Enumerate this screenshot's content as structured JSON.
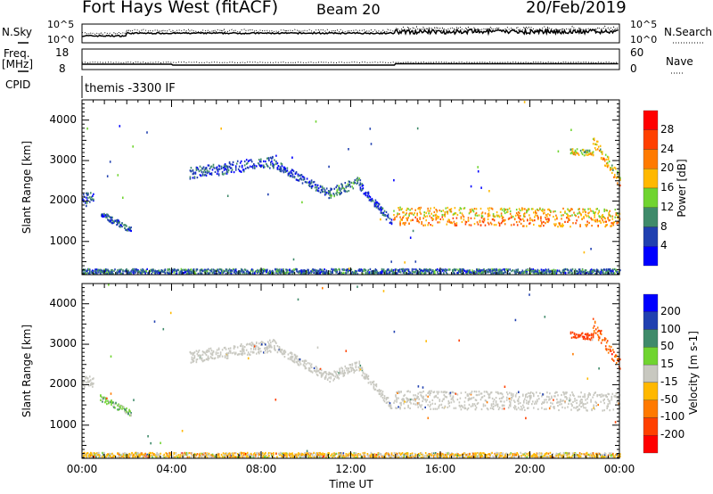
{
  "header": {
    "station": "Fort Hays West (fitACF)",
    "beam": "Beam 20",
    "date": "20/Feb/2019"
  },
  "noise_panel": {
    "left_label": "N.Sky",
    "right_label": "N.Search",
    "ticks_left": [
      "10^5",
      "10^0"
    ],
    "ticks_right": [
      "10^5",
      "10^0"
    ]
  },
  "freq_panel": {
    "left_label_1": "Freq.",
    "left_label_2": "[MHz]",
    "right_label": "Nave",
    "ticks_left": [
      "18",
      "8"
    ],
    "ticks_right": [
      "60",
      "0"
    ]
  },
  "cpid": {
    "label": "CPID",
    "value": "themis -3300 IF"
  },
  "chart_data": [
    {
      "type": "heatmap",
      "title": "Power",
      "ylabel": "Slant Range [km]",
      "xlabel": "Time UT",
      "xlim": [
        0,
        24
      ],
      "ylim": [
        180,
        4500
      ],
      "yticks": [
        1000,
        2000,
        3000,
        4000
      ],
      "xtick_labels": [
        "00:00",
        "04:00",
        "08:00",
        "12:00",
        "16:00",
        "20:00",
        "00:00"
      ],
      "colorbar": {
        "label": "Power [dB]",
        "ticks": [
          "28",
          "24",
          "20",
          "16",
          "12",
          "8",
          "4"
        ],
        "colors": [
          "#ff0000",
          "#ff4000",
          "#ff7a00",
          "#ffb800",
          "#70d430",
          "#3f8a6a",
          "#2040b0",
          "#0000ff"
        ]
      },
      "echo_bands": [
        {
          "t0": 0.0,
          "t1": 0.5,
          "r0": 2100,
          "r1": 2100,
          "width": 250,
          "power": 6,
          "velocity": 0
        },
        {
          "t0": 0.8,
          "t1": 2.2,
          "r0": 1700,
          "r1": 1300,
          "width": 150,
          "power": 6,
          "velocity": 30
        },
        {
          "t0": 4.8,
          "t1": 8.7,
          "r0": 2700,
          "r1": 3000,
          "width": 300,
          "power": 6,
          "velocity": 0
        },
        {
          "t0": 8.7,
          "t1": 11.0,
          "r0": 2900,
          "r1": 2200,
          "width": 200,
          "power": 6,
          "velocity": 0
        },
        {
          "t0": 11.0,
          "t1": 12.4,
          "r0": 2200,
          "r1": 2500,
          "width": 250,
          "power": 10,
          "velocity": 0
        },
        {
          "t0": 12.4,
          "t1": 13.8,
          "r0": 2400,
          "r1": 1500,
          "width": 200,
          "power": 6,
          "velocity": 0
        },
        {
          "t0": 13.9,
          "t1": 24.0,
          "r0": 1650,
          "r1": 1600,
          "width": 450,
          "power": 18,
          "velocity": 0
        },
        {
          "t0": 0.0,
          "t1": 24.0,
          "r0": 280,
          "r1": 280,
          "width": 120,
          "power": 8,
          "velocity": -20
        },
        {
          "t0": 21.8,
          "t1": 22.8,
          "r0": 3250,
          "r1": 3200,
          "width": 150,
          "power": 14,
          "velocity": -150
        },
        {
          "t0": 22.8,
          "t1": 24.0,
          "r0": 3500,
          "r1": 2500,
          "width": 350,
          "power": 16,
          "velocity": -100
        }
      ]
    },
    {
      "type": "heatmap",
      "title": "Velocity",
      "ylabel": "Slant Range [km]",
      "xlim": [
        0,
        24
      ],
      "ylim": [
        180,
        4500
      ],
      "yticks": [
        1000,
        2000,
        3000,
        4000
      ],
      "colorbar": {
        "label": "Velocity [m s-1]",
        "ticks": [
          "200",
          "100",
          "50",
          "15",
          "-15",
          "-50",
          "-100",
          "-200"
        ],
        "colors": [
          "#0000ff",
          "#2040b0",
          "#3f8a6a",
          "#70d430",
          "#c8c8c0",
          "#ffb800",
          "#ff7a00",
          "#ff4000",
          "#ff0000"
        ]
      }
    }
  ]
}
